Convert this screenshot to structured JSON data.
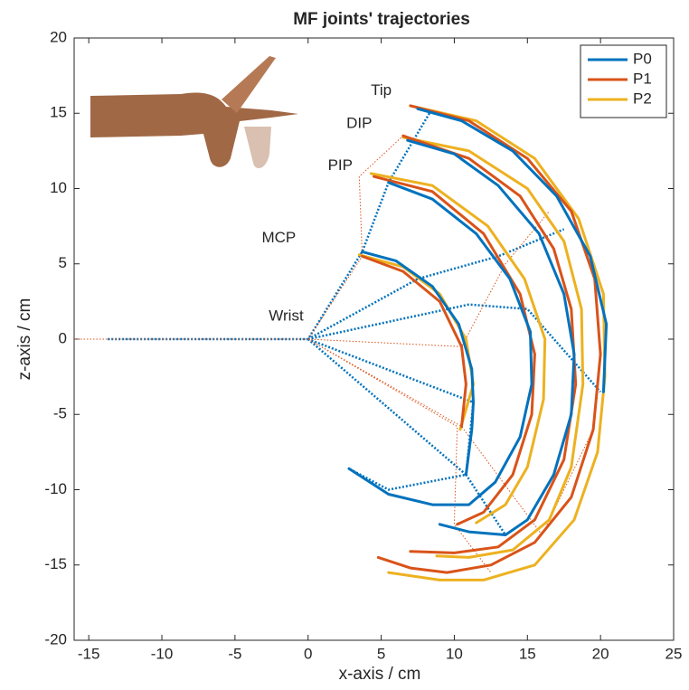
{
  "chart_data": {
    "type": "line",
    "title": "MF joints' trajectories",
    "x_label": "x-axis / cm",
    "y_label": "z-axis / cm",
    "xlim": [
      -16,
      25
    ],
    "ylim": [
      -20,
      20
    ],
    "xticks": [
      -15,
      -10,
      -5,
      0,
      5,
      10,
      15,
      20,
      25
    ],
    "yticks": [
      -20,
      -15,
      -10,
      -5,
      0,
      5,
      10,
      15,
      20
    ],
    "legend": "upper right",
    "annotations": [
      "Wrist",
      "MCP",
      "PIP",
      "DIP",
      "Tip"
    ],
    "series": [
      {
        "name": "P0",
        "color": "#0072bd",
        "x": [
          3.7,
          6,
          8.5,
          10.3,
          11.2,
          11.3,
          11.2,
          10.8,
          null,
          5.5,
          8.5,
          11.5,
          13.8,
          15.2,
          15.3,
          14.5,
          12.8,
          11,
          8.5,
          5.5,
          2.8,
          null,
          6.8,
          10,
          13,
          15.8,
          17.5,
          18.2,
          18,
          16.8,
          15,
          13.5,
          11,
          9,
          null,
          7.5,
          10.5,
          14,
          17,
          19.3,
          20.4,
          20.2
        ],
        "values": [
          5.8,
          5.2,
          3.5,
          1,
          -2,
          -4.2,
          -6,
          -9,
          null,
          10.4,
          9.3,
          7,
          4,
          0.5,
          -3,
          -6.5,
          -9.5,
          -11,
          -11,
          -10.3,
          -8.6,
          null,
          13.2,
          12.3,
          10.2,
          7,
          3,
          -1,
          -5,
          -9,
          -12,
          -13,
          -12.8,
          -12.3,
          null,
          15.3,
          14.5,
          12.5,
          9.5,
          5.5,
          1,
          -3.5
        ]
      },
      {
        "name": "P1",
        "color": "#d95319",
        "x": [
          3.7,
          6.5,
          9,
          10.5,
          10.8,
          10.5,
          null,
          4.5,
          8.5,
          12,
          14.5,
          15.5,
          15.3,
          14,
          12,
          10.2,
          null,
          6.5,
          11,
          14.5,
          16.8,
          18,
          18.3,
          17.5,
          15.5,
          13,
          10,
          7,
          null,
          7,
          11,
          15,
          18,
          19.6,
          20,
          19.5,
          18,
          15.5,
          12.5,
          9.5,
          7,
          4.8
        ],
        "values": [
          5.5,
          4.5,
          2.5,
          -0.5,
          -3,
          -5.8,
          null,
          10.8,
          9.8,
          7,
          3,
          -1,
          -5,
          -9,
          -11.5,
          -12.3,
          null,
          13.5,
          12,
          9.5,
          6,
          2,
          -3,
          -8,
          -12,
          -13.8,
          -14.2,
          -14.1,
          null,
          15.5,
          14.5,
          12,
          8.5,
          4,
          -1,
          -6,
          -10.5,
          -13.5,
          -15,
          -15.5,
          -15.2,
          -14.5
        ]
      },
      {
        "name": "P2",
        "color": "#edb120",
        "x": [
          3.5,
          6.5,
          9,
          10.8,
          11.3,
          10.4,
          null,
          4.3,
          8.5,
          12.3,
          14.8,
          16.2,
          16.1,
          15,
          13.5,
          11.5,
          null,
          6.5,
          11,
          15,
          17.5,
          18.7,
          18.8,
          18,
          16.5,
          14,
          11,
          8.8,
          null,
          7,
          11.5,
          15.5,
          18.5,
          20.2,
          20.3,
          19.8,
          18.2,
          15.5,
          12,
          9,
          5.5
        ],
        "values": [
          5.6,
          4.8,
          3,
          0,
          -3,
          -6,
          null,
          11,
          10.2,
          7.5,
          4,
          0,
          -4,
          -8.5,
          -11,
          -12.2,
          null,
          13.4,
          12.5,
          10,
          6.5,
          2,
          -3,
          -8.5,
          -12,
          -14,
          -14.5,
          -14.4,
          null,
          15.5,
          14.5,
          12,
          8,
          3,
          -2.5,
          -7.5,
          -12,
          -15,
          -16,
          -16,
          -15.5
        ]
      }
    ],
    "links": [
      {
        "color": "#0072bd",
        "x": [
          -13.7,
          0,
          3.7,
          5.5,
          8.3,
          null,
          0,
          7.5,
          13,
          17.5,
          null,
          0,
          11,
          15,
          20,
          null,
          0,
          11.3,
          10.8,
          13.5,
          null,
          0,
          10.8,
          5.5,
          2.8
        ],
        "values": [
          0,
          0,
          5.8,
          10.4,
          15,
          null,
          0,
          4,
          5.5,
          7.3,
          null,
          0,
          2.3,
          2,
          -3.5,
          null,
          0,
          -4.2,
          -9,
          -13,
          null,
          0,
          -9,
          -10,
          -8.6
        ]
      },
      {
        "color": "#d95319",
        "x": [
          -16,
          0,
          3.7,
          3.5,
          6.5,
          null,
          0,
          10.5,
          16,
          19.5,
          null,
          0,
          10.5,
          13.5,
          16.5,
          null,
          0,
          10.2,
          10,
          12.5
        ],
        "values": [
          0,
          0,
          5.5,
          10.8,
          13.5,
          null,
          0,
          -5.8,
          -13,
          -6,
          null,
          0,
          -0.5,
          5,
          8.5,
          null,
          0,
          -5.8,
          -12.3,
          -15.5
        ]
      }
    ]
  }
}
